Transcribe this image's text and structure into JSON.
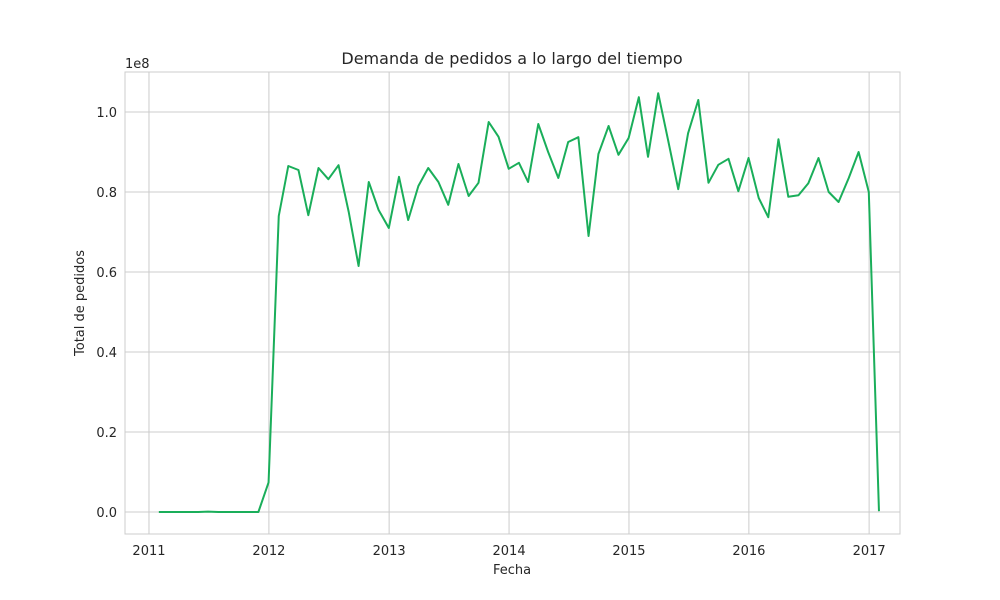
{
  "chart_data": {
    "type": "line",
    "title": "Demanda de pedidos a lo largo del tiempo",
    "xlabel": "Fecha",
    "ylabel": "Total de pedidos",
    "y_offset_label": "1e8",
    "y_multiplier": 100000000,
    "grid": true,
    "line_color": "#1aae5a",
    "xlim": [
      "2010-10-20",
      "2017-04-05"
    ],
    "ylim": [
      -0.055,
      1.1
    ],
    "x_ticks": [
      "2011-01-01",
      "2012-01-01",
      "2013-01-01",
      "2014-01-01",
      "2015-01-01",
      "2016-01-01",
      "2017-01-01"
    ],
    "x_tick_labels": [
      "2011",
      "2012",
      "2013",
      "2014",
      "2015",
      "2016",
      "2017"
    ],
    "y_ticks": [
      0.0,
      0.2,
      0.4,
      0.6,
      0.8,
      1.0
    ],
    "y_tick_labels": [
      "0.0",
      "0.2",
      "0.4",
      "0.6",
      "0.8",
      "1.0"
    ],
    "series": [
      {
        "x": [
          "2011-01-31",
          "2011-02-28",
          "2011-03-31",
          "2011-04-30",
          "2011-05-31",
          "2011-06-30",
          "2011-07-31",
          "2011-08-31",
          "2011-09-30",
          "2011-10-31",
          "2011-11-30",
          "2011-12-31",
          "2012-01-31",
          "2012-02-29",
          "2012-03-31",
          "2012-04-30",
          "2012-05-31",
          "2012-06-30",
          "2012-07-31",
          "2012-08-31",
          "2012-09-30",
          "2012-10-31",
          "2012-11-30",
          "2012-12-31",
          "2013-01-31",
          "2013-02-28",
          "2013-03-31",
          "2013-04-30",
          "2013-05-31",
          "2013-06-30",
          "2013-07-31",
          "2013-08-31",
          "2013-09-30",
          "2013-10-31",
          "2013-11-30",
          "2013-12-31",
          "2014-01-31",
          "2014-02-28",
          "2014-03-31",
          "2014-04-30",
          "2014-05-31",
          "2014-06-30",
          "2014-07-31",
          "2014-08-31",
          "2014-09-30",
          "2014-10-31",
          "2014-11-30",
          "2014-12-31",
          "2015-01-31",
          "2015-02-28",
          "2015-03-31",
          "2015-04-30",
          "2015-05-31",
          "2015-06-30",
          "2015-07-31",
          "2015-08-31",
          "2015-09-30",
          "2015-10-31",
          "2015-11-30",
          "2015-12-31",
          "2016-01-31",
          "2016-02-29",
          "2016-03-31",
          "2016-04-30",
          "2016-05-31",
          "2016-06-30",
          "2016-07-31",
          "2016-08-31",
          "2016-09-30",
          "2016-10-31",
          "2016-11-30",
          "2016-12-31",
          "2017-01-31"
        ],
        "values": [
          0.0,
          0.0,
          0.0,
          0.0,
          0.0,
          0.001,
          0.0,
          0.0,
          0.0,
          0.0,
          0.0,
          0.074,
          0.74,
          0.865,
          0.855,
          0.742,
          0.86,
          0.832,
          0.867,
          0.75,
          0.615,
          0.825,
          0.755,
          0.71,
          0.838,
          0.73,
          0.815,
          0.86,
          0.825,
          0.768,
          0.87,
          0.79,
          0.823,
          0.975,
          0.938,
          0.858,
          0.873,
          0.825,
          0.97,
          0.9,
          0.835,
          0.925,
          0.937,
          0.69,
          0.895,
          0.965,
          0.893,
          0.935,
          1.037,
          0.888,
          1.047,
          0.93,
          0.807,
          0.947,
          1.03,
          0.823,
          0.868,
          0.883,
          0.802,
          0.885,
          0.785,
          0.737,
          0.932,
          0.788,
          0.792,
          0.822,
          0.885,
          0.8,
          0.775,
          0.835,
          0.9,
          0.8,
          0.002
        ]
      }
    ]
  }
}
